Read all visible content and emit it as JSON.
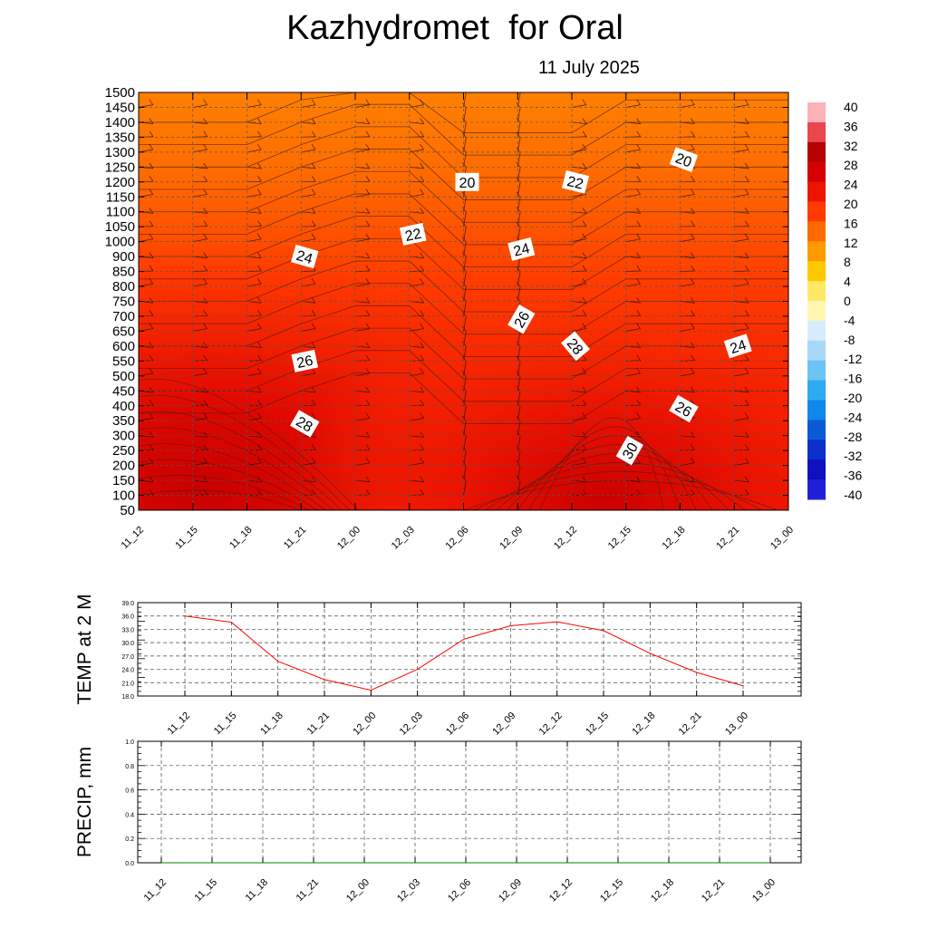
{
  "title": "Kazhydromet  for Oral",
  "subtitle": "11 July 2025",
  "time_labels": [
    "11_12",
    "11_15",
    "11_18",
    "11_21",
    "12_00",
    "12_03",
    "12_06",
    "12_09",
    "12_12",
    "12_15",
    "12_18",
    "12_21",
    "13_00"
  ],
  "chart_data": [
    {
      "type": "heatmap",
      "title": "Kazhydromet  for Oral",
      "subtitle": "11 July 2025",
      "x": [
        "11_12",
        "11_15",
        "11_18",
        "11_21",
        "12_00",
        "12_03",
        "12_06",
        "12_09",
        "12_12",
        "12_15",
        "12_18",
        "12_21",
        "13_00"
      ],
      "y_levels": [
        50,
        100,
        150,
        200,
        250,
        300,
        350,
        400,
        450,
        500,
        550,
        600,
        650,
        700,
        750,
        800,
        850,
        900,
        1000,
        1050,
        1100,
        1150,
        1200,
        1250,
        1300,
        1350,
        1400,
        1450,
        1500
      ],
      "ylim": [
        50,
        1500
      ],
      "grid": true,
      "contour_labels": [
        {
          "value": "20",
          "x": "12_06",
          "y": 1200
        },
        {
          "value": "20",
          "x": "12_18",
          "y": 1275
        },
        {
          "value": "22",
          "x": "12_03",
          "y": 1025
        },
        {
          "value": "22",
          "x": "12_12",
          "y": 1200
        },
        {
          "value": "24",
          "x": "11_21",
          "y": 900
        },
        {
          "value": "24",
          "x": "12_09",
          "y": 950
        },
        {
          "value": "24",
          "x": "12_21",
          "y": 600
        },
        {
          "value": "26",
          "x": "12_09",
          "y": 690
        },
        {
          "value": "26",
          "x": "11_21",
          "y": 550
        },
        {
          "value": "26",
          "x": "12_18",
          "y": 390
        },
        {
          "value": "28",
          "x": "12_12",
          "y": 600
        },
        {
          "value": "28",
          "x": "11_21",
          "y": 340
        },
        {
          "value": "30",
          "x": "12_15",
          "y": 250
        }
      ],
      "colorbar": {
        "labels": [
          "40",
          "36",
          "32",
          "28",
          "24",
          "20",
          "16",
          "12",
          "8",
          "4",
          "0",
          "-4",
          "-8",
          "-12",
          "-16",
          "-20",
          "-24",
          "-28",
          "-32",
          "-36",
          "-40"
        ],
        "colors": [
          "#fbb3b8",
          "#e8484c",
          "#b40000",
          "#d40000",
          "#ee1500",
          "#ff3a00",
          "#ff6a00",
          "#ff9a00",
          "#ffc800",
          "#ffe866",
          "#fff6b0",
          "#d8ecff",
          "#a8d8f8",
          "#6cc4f4",
          "#2eaaf0",
          "#1088ea",
          "#0a5ad8",
          "#0a30c8",
          "#1010c0",
          "#2020d8",
          "#6a20e0"
        ]
      }
    },
    {
      "type": "line",
      "ylabel": "TEMP at 2 M",
      "x": [
        "11_12",
        "11_15",
        "11_18",
        "11_21",
        "12_00",
        "12_03",
        "12_06",
        "12_09",
        "12_12",
        "12_15",
        "12_18",
        "12_21",
        "13_00"
      ],
      "series": [
        {
          "values": [
            36.0,
            34.6,
            25.8,
            21.7,
            19.3,
            24.0,
            30.8,
            33.8,
            34.7,
            32.7,
            27.6,
            23.3,
            20.3
          ],
          "color": "#ff0000"
        }
      ],
      "yticks": [
        "18.0",
        "21.0",
        "24.0",
        "27.0",
        "30.0",
        "33.0",
        "36.0",
        "39.0"
      ],
      "ylim": [
        18,
        39
      ],
      "grid": true
    },
    {
      "type": "line",
      "ylabel": "PRECIP, mm",
      "x": [
        "11_12",
        "11_15",
        "11_18",
        "11_21",
        "12_00",
        "12_03",
        "12_06",
        "12_09",
        "12_12",
        "12_15",
        "12_18",
        "12_21",
        "13_00"
      ],
      "series": [
        {
          "values": [
            0,
            0,
            0,
            0,
            0,
            0,
            0,
            0,
            0,
            0,
            0,
            0,
            0
          ],
          "color": "#008000"
        }
      ],
      "yticks": [
        "0.0",
        "0.2",
        "0.4",
        "0.6",
        "0.8",
        "1.0"
      ],
      "ylim": [
        0,
        1
      ],
      "grid": true
    }
  ]
}
